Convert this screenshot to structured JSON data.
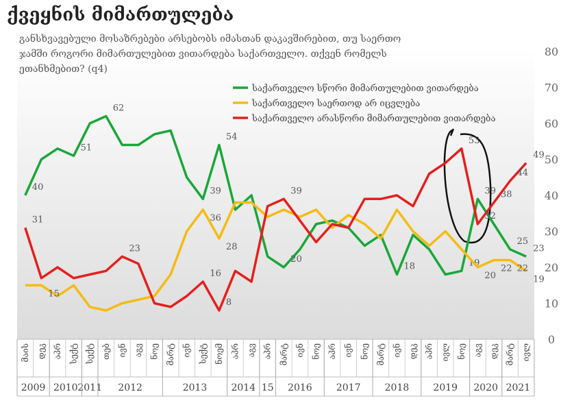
{
  "chart_data": {
    "type": "line",
    "title": "ქვეყნის მიმართულება",
    "subtitle": [
      "განსხვავებული მოსაზრებები არსებობს იმასთან დაკავშირებით, თუ საერთო",
      "ჯამში როგორი მიმართულებით ვითარდება საქართველო. თქვენ რომელს",
      "ეთანხმებით? (q4)"
    ],
    "categories": [
      "მაის",
      "დეკ",
      "აპრ",
      "სექტ",
      "სექტ",
      "თებ",
      "ივნ",
      "აგვ",
      "ნოე",
      "მარტ",
      "ივნ",
      "სექტ",
      "ნოემ",
      "აპრ",
      "აგვ",
      "აპრ",
      "მარტ",
      "ივნ",
      "ნოე",
      "აპრ",
      "ივნ",
      "ნოე",
      "მარტ",
      "ივნ",
      "დეკ",
      "აპრ",
      "ივლ",
      "ნოე",
      "აგვ",
      "დეკ",
      "მარტ",
      "ივლ"
    ],
    "groups": [
      {
        "label": "2009",
        "size": 2
      },
      {
        "label": "2010",
        "size": 2
      },
      {
        "label": "2011",
        "size": 1
      },
      {
        "label": "2012",
        "size": 4
      },
      {
        "label": "2013",
        "size": 4
      },
      {
        "label": "2014",
        "size": 2
      },
      {
        "label": "15",
        "size": 1
      },
      {
        "label": "2016",
        "size": 3
      },
      {
        "label": "2017",
        "size": 3
      },
      {
        "label": "2018",
        "size": 3
      },
      {
        "label": "2019",
        "size": 3
      },
      {
        "label": "2020",
        "size": 2
      },
      {
        "label": "2021",
        "size": 2
      }
    ],
    "series": [
      {
        "name": "საქართველო  სწორი მიმართულებით ვითარდება",
        "color": "#1aa63a",
        "values": [
          40,
          50,
          53,
          51,
          60,
          62,
          54,
          54,
          57,
          58,
          45,
          39,
          54,
          36,
          40,
          23,
          20,
          25,
          32,
          33,
          31,
          26,
          29,
          18,
          29,
          25,
          18,
          19,
          39,
          32,
          25,
          23
        ],
        "value_labels": [
          "40",
          null,
          null,
          "51",
          null,
          "62",
          null,
          null,
          null,
          null,
          null,
          "39",
          "54",
          null,
          null,
          null,
          "20",
          null,
          null,
          null,
          null,
          null,
          null,
          "18",
          null,
          null,
          null,
          "19",
          "39",
          null,
          "25",
          "23"
        ]
      },
      {
        "name": "საქართველო საერთოდ არ იცვლება",
        "color": "#f5bb12",
        "values": [
          15,
          15,
          12,
          15,
          9,
          8,
          10,
          11,
          12,
          18,
          30,
          36,
          28,
          38,
          38,
          34,
          36,
          34,
          36,
          31,
          34.5,
          32,
          28,
          36,
          30,
          26,
          30,
          25,
          20,
          22,
          22,
          19
        ],
        "value_labels": [
          null,
          "15",
          null,
          null,
          null,
          null,
          null,
          null,
          null,
          null,
          null,
          "36",
          "28",
          null,
          null,
          null,
          null,
          null,
          null,
          null,
          null,
          null,
          null,
          null,
          null,
          null,
          null,
          null,
          "20",
          "22",
          "22",
          "19"
        ]
      },
      {
        "name": "საქართველო არასწორი მიმართულებით ვითარდება",
        "color": "#e3201c",
        "values": [
          31,
          17,
          20,
          17,
          18,
          19,
          23,
          21,
          10,
          9,
          12,
          16,
          8,
          19,
          16,
          37,
          39,
          33,
          27,
          32,
          31,
          39,
          39,
          40,
          37,
          46,
          49,
          53,
          32,
          38,
          44,
          49
        ],
        "value_labels": [
          "31",
          null,
          null,
          null,
          null,
          null,
          "23",
          null,
          null,
          null,
          null,
          "16",
          "8",
          null,
          null,
          null,
          "39",
          null,
          null,
          null,
          null,
          null,
          null,
          null,
          null,
          null,
          null,
          "53",
          "32",
          "38",
          "44",
          "49"
        ]
      }
    ],
    "ylim": [
      0,
      80
    ],
    "yticks": [
      0,
      10,
      20,
      30,
      40,
      50,
      60,
      70,
      80
    ],
    "grid": false
  }
}
